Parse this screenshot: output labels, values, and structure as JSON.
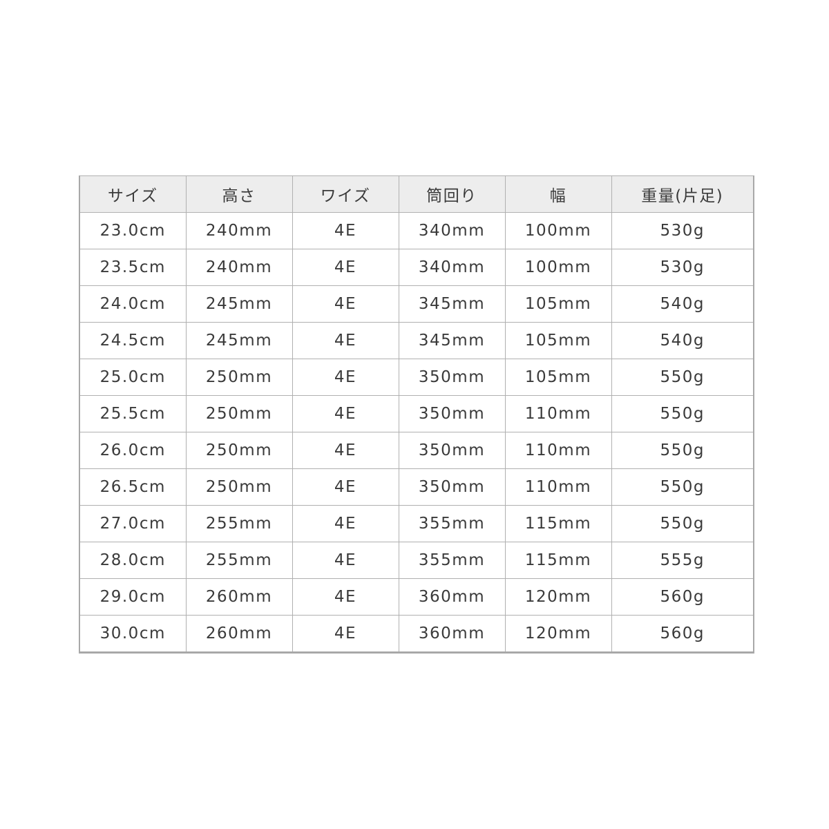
{
  "table": {
    "headers": [
      "サイズ",
      "高さ",
      "ワイズ",
      "筒回り",
      "幅",
      "重量(片足)"
    ],
    "rows": [
      [
        "23.0cm",
        "240mm",
        "4E",
        "340mm",
        "100mm",
        "530g"
      ],
      [
        "23.5cm",
        "240mm",
        "4E",
        "340mm",
        "100mm",
        "530g"
      ],
      [
        "24.0cm",
        "245mm",
        "4E",
        "345mm",
        "105mm",
        "540g"
      ],
      [
        "24.5cm",
        "245mm",
        "4E",
        "345mm",
        "105mm",
        "540g"
      ],
      [
        "25.0cm",
        "250mm",
        "4E",
        "350mm",
        "105mm",
        "550g"
      ],
      [
        "25.5cm",
        "250mm",
        "4E",
        "350mm",
        "110mm",
        "550g"
      ],
      [
        "26.0cm",
        "250mm",
        "4E",
        "350mm",
        "110mm",
        "550g"
      ],
      [
        "26.5cm",
        "250mm",
        "4E",
        "350mm",
        "110mm",
        "550g"
      ],
      [
        "27.0cm",
        "255mm",
        "4E",
        "355mm",
        "115mm",
        "550g"
      ],
      [
        "28.0cm",
        "255mm",
        "4E",
        "355mm",
        "115mm",
        "555g"
      ],
      [
        "29.0cm",
        "260mm",
        "4E",
        "360mm",
        "120mm",
        "560g"
      ],
      [
        "30.0cm",
        "260mm",
        "4E",
        "360mm",
        "120mm",
        "560g"
      ]
    ]
  }
}
